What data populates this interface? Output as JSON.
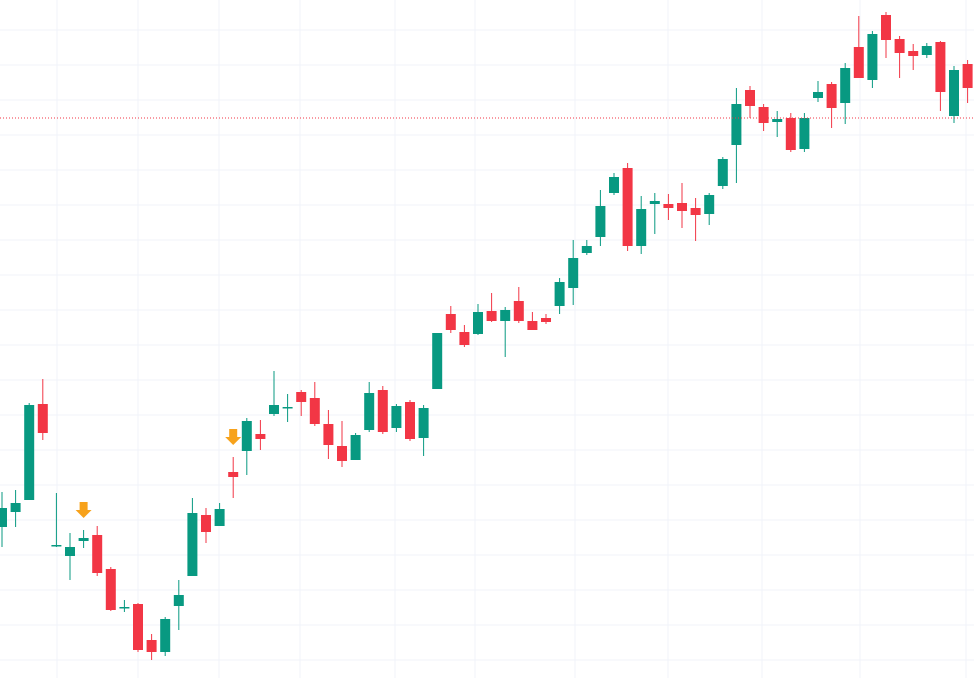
{
  "chart_data": {
    "type": "candlestick",
    "up_color": "#089981",
    "down_color": "#f23645",
    "signal_color": "#f7a21b",
    "price_line_color": "#f23645",
    "ylim": [
      0,
      678
    ],
    "grid": true,
    "open": [
      151,
      166,
      178,
      274,
      133,
      122,
      137,
      143,
      109,
      70,
      74,
      38,
      26,
      72,
      102,
      163,
      152,
      206,
      227,
      244,
      264,
      271,
      286,
      280,
      254,
      232,
      218,
      248,
      288,
      250,
      276,
      240,
      289,
      364,
      346,
      344,
      367,
      357,
      377,
      357,
      360,
      372,
      390,
      425,
      441,
      485,
      510,
      432,
      474,
      474,
      475,
      470,
      464,
      492,
      533,
      588,
      571,
      556,
      560,
      529,
      580,
      594,
      575,
      631,
      598,
      663,
      639,
      627,
      623,
      636,
      562,
      614
    ],
    "high": [
      186,
      188,
      275,
      299,
      185,
      145,
      148,
      152,
      111,
      78,
      75,
      44,
      61,
      98,
      180,
      170,
      175,
      221,
      260,
      258,
      307,
      284,
      288,
      296,
      268,
      257,
      245,
      296,
      292,
      274,
      278,
      273,
      345,
      372,
      353,
      374,
      385,
      371,
      391,
      366,
      364,
      400,
      438,
      438,
      488,
      505,
      515,
      482,
      485,
      484,
      495,
      480,
      485,
      521,
      590,
      592,
      574,
      567,
      565,
      565,
      597,
      596,
      615,
      662,
      647,
      666,
      642,
      634,
      635,
      637,
      612,
      618
    ],
    "low": [
      131,
      151,
      178,
      238,
      131,
      98,
      130,
      102,
      67,
      66,
      26,
      18,
      22,
      48,
      102,
      135,
      152,
      180,
      203,
      228,
      262,
      256,
      262,
      252,
      219,
      211,
      218,
      246,
      244,
      246,
      237,
      222,
      289,
      345,
      331,
      343,
      356,
      321,
      355,
      348,
      354,
      364,
      373,
      423,
      432,
      483,
      427,
      424,
      444,
      458,
      450,
      437,
      453,
      489,
      495,
      560,
      547,
      541,
      526,
      526,
      576,
      550,
      554,
      600,
      590,
      620,
      600,
      608,
      620,
      567,
      555,
      575
    ],
    "close": [
      170,
      175,
      273,
      245,
      133,
      131,
      140,
      105,
      68,
      71,
      28,
      26,
      59,
      83,
      165,
      146,
      169,
      201,
      257,
      239,
      273,
      271,
      276,
      254,
      233,
      217,
      243,
      285,
      246,
      272,
      239,
      270,
      345,
      348,
      333,
      366,
      357,
      368,
      357,
      348,
      356,
      396,
      420,
      432,
      472,
      501,
      432,
      469,
      477,
      470,
      467,
      463,
      483,
      519,
      574,
      572,
      555,
      559,
      528,
      560,
      586,
      570,
      610,
      600,
      644,
      638,
      625,
      622,
      632,
      586,
      608,
      590
    ],
    "signals": [
      6,
      17
    ],
    "price_line": 560
  }
}
